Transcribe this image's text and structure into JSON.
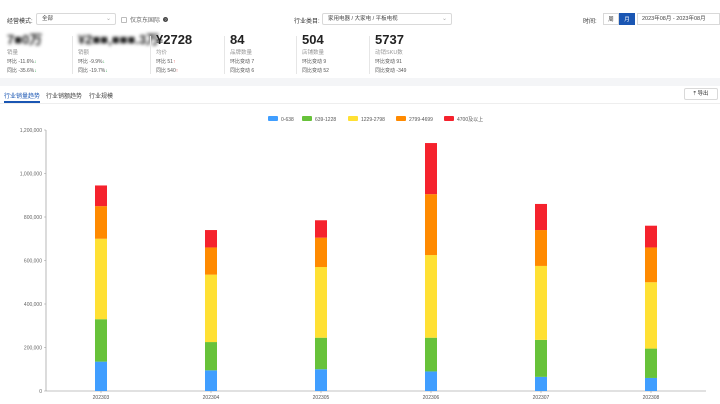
{
  "filters": {
    "mode_label": "经营模式:",
    "mode_value": "全部",
    "only_jd_label": "仅京东国际",
    "industry_label": "行业类目:",
    "industry_value": "家用电器 / 大家电 / 平板电视",
    "time_label": "时间:",
    "period_week": "周",
    "period_month": "月",
    "date_range": "2023年08月 - 2023年08月"
  },
  "metrics": [
    {
      "value": "7■0万",
      "name": "销量",
      "row1_label": "环比",
      "row1_value": "-11.6%",
      "row1_dir": "down",
      "row2_label": "同比",
      "row2_value": "-35.6%",
      "row2_dir": "down"
    },
    {
      "value": "¥2■■,■■■.3万",
      "name": "销额",
      "row1_label": "环比",
      "row1_value": "-9.9%",
      "row1_dir": "down",
      "row2_label": "同比",
      "row2_value": "-19.7%",
      "row2_dir": "down"
    },
    {
      "value": "¥2728",
      "name": "均价",
      "row1_label": "环比",
      "row1_value": "51",
      "row1_dir": "up",
      "row2_label": "同比",
      "row2_value": "540",
      "row2_dir": "up"
    },
    {
      "value": "84",
      "name": "品牌数量",
      "row1_label": "环比变动",
      "row1_value": "7",
      "row1_dir": "",
      "row2_label": "同比变动",
      "row2_value": "6",
      "row2_dir": ""
    },
    {
      "value": "504",
      "name": "店铺数量",
      "row1_label": "环比变动",
      "row1_value": "9",
      "row1_dir": "",
      "row2_label": "同比变动",
      "row2_value": "52",
      "row2_dir": ""
    },
    {
      "value": "5737",
      "name": "动销SKU数",
      "row1_label": "环比变动",
      "row1_value": "91",
      "row1_dir": "",
      "row2_label": "同比变动",
      "row2_value": "-349",
      "row2_dir": ""
    }
  ],
  "tabs": [
    "行业销量趋势",
    "行业销额趋势",
    "行业规模"
  ],
  "export_label": "导出",
  "colors": {
    "accent": "#1a56b3",
    "s1": "#409eff",
    "s2": "#67c23a",
    "s3": "#ffe033",
    "s4": "#ff8a00",
    "s5": "#f5222d"
  },
  "chart_data": {
    "type": "bar",
    "stacked": true,
    "categories": [
      "202303",
      "202304",
      "202305",
      "202306",
      "202307",
      "202308"
    ],
    "series": [
      {
        "name": "0-638",
        "values": [
          135000,
          95000,
          100000,
          90000,
          65000,
          60000
        ]
      },
      {
        "name": "639-1228",
        "values": [
          195000,
          130000,
          145000,
          155000,
          170000,
          135000
        ]
      },
      {
        "name": "1229-2798",
        "values": [
          370000,
          310000,
          325000,
          380000,
          340000,
          305000
        ]
      },
      {
        "name": "2799-4699",
        "values": [
          150000,
          125000,
          135000,
          280000,
          165000,
          160000
        ]
      },
      {
        "name": "4700及以上",
        "values": [
          95000,
          80000,
          80000,
          235000,
          120000,
          100000
        ]
      }
    ],
    "ylim": [
      0,
      1200000
    ],
    "yticks": [
      0,
      200000,
      400000,
      600000,
      800000,
      1000000,
      1200000
    ],
    "ytick_labels": [
      "0",
      "200,000",
      "400,000",
      "600,000",
      "800,000",
      "1,000,000",
      "1,200,000"
    ],
    "legend_position": "top-center",
    "grid": false
  }
}
